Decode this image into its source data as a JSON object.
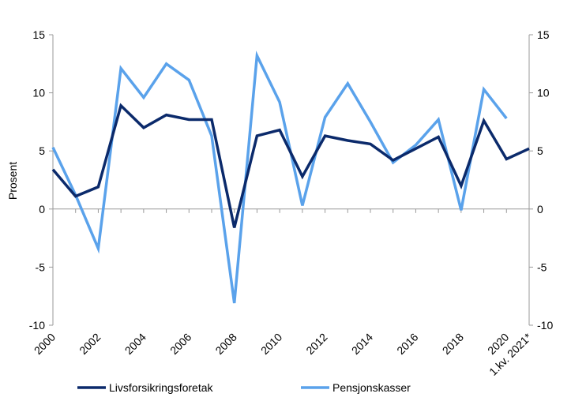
{
  "chart_data": {
    "type": "line",
    "title": "",
    "xlabel": "",
    "ylabel": "Prosent",
    "ylim": [
      -10,
      15
    ],
    "yticks": [
      -10,
      -5,
      0,
      5,
      10,
      15
    ],
    "categories": [
      "2000",
      "2001",
      "2002",
      "2003",
      "2004",
      "2005",
      "2006",
      "2007",
      "2008",
      "2009",
      "2010",
      "2011",
      "2012",
      "2013",
      "2014",
      "2015",
      "2016",
      "2017",
      "2018",
      "2019",
      "2020",
      "1.kv. 2021*"
    ],
    "xtick_labels": [
      "2000",
      "2002",
      "2004",
      "2006",
      "2008",
      "2010",
      "2012",
      "2014",
      "2016",
      "2018",
      "2020",
      "1.kv. 2021*"
    ],
    "grid": false,
    "secondary_y_axis": true,
    "legend_position": "bottom",
    "series": [
      {
        "name": "Livsforsikringsforetak",
        "color": "#0b2a6b",
        "values": [
          3.4,
          1.1,
          1.9,
          8.9,
          7.0,
          8.1,
          7.7,
          7.7,
          -1.6,
          6.3,
          6.8,
          2.8,
          6.3,
          5.9,
          5.6,
          4.2,
          5.2,
          6.2,
          2.0,
          7.6,
          4.3,
          5.2
        ]
      },
      {
        "name": "Pensjonskasser",
        "color": "#5aa2eb",
        "values": [
          5.3,
          1.2,
          -3.4,
          12.1,
          9.6,
          12.5,
          11.1,
          6.3,
          -8.1,
          13.2,
          9.2,
          0.3,
          7.9,
          10.8,
          7.5,
          4.0,
          5.5,
          7.7,
          -0.1,
          10.3,
          7.8,
          null
        ]
      }
    ]
  }
}
